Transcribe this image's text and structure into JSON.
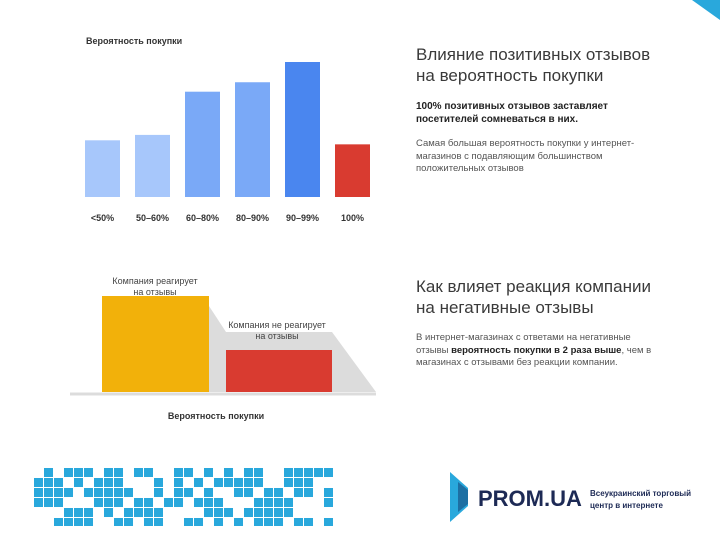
{
  "chart_data": [
    {
      "type": "bar",
      "title": "Вероятность покупки",
      "categories": [
        "<50%",
        "50–60%",
        "60–80%",
        "80–90%",
        "90–99%",
        "100%"
      ],
      "values": [
        0.42,
        0.46,
        0.78,
        0.85,
        1.0,
        0.39
      ],
      "colors": [
        "#a7c7fb",
        "#a7c7fb",
        "#7aa9f7",
        "#7aa9f7",
        "#4a86ef",
        "#d93b30"
      ],
      "xlabel": "",
      "ylabel": "",
      "ylim": [
        0,
        1
      ]
    },
    {
      "type": "bar",
      "title": "Вероятность покупки",
      "categories": [
        "Компания реагирует на отзывы",
        "Компания не реагирует на отзывы"
      ],
      "values": [
        2,
        1
      ],
      "colors": [
        "#f2b10a",
        "#d93b30"
      ],
      "ylim": [
        0,
        2.1
      ]
    }
  ],
  "section1": {
    "heading": "Влияние позитивных отзывов на вероятность покупки",
    "bold": "100% позитивных отзывов заставляет посетителей сомневаться в них.",
    "text": "Самая большая вероятность покупки у интернет-магазинов с подавляющим большинством положительных отзывов"
  },
  "section2": {
    "heading": "Как влияет реакция компании на негативные отзывы",
    "text_before": "В интернет-магазинах с ответами на негативные отзывы ",
    "text_bold": "вероятность покупки в 2 раза выше",
    "text_after": ", чем в магазинах с отзывами  без реакции компании."
  },
  "footer": {
    "brand": "PROM.UA",
    "tagline_1": "Всеукраинский торговый",
    "tagline_2": "центр в интернете",
    "brand_color": "#1d2a55",
    "accent_color": "#29a8dc"
  }
}
